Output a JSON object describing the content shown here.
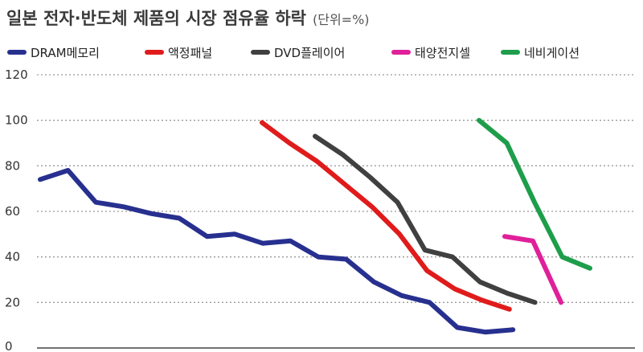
{
  "chart_data": {
    "type": "line",
    "title": "일본 전자·반도체 제품의 시장 점유율 하락",
    "unit": "(단위=%)",
    "ylim": [
      0,
      120
    ],
    "yticks": [
      0,
      20,
      40,
      60,
      80,
      100,
      120
    ],
    "grid": true,
    "legend_position": "top",
    "series": [
      {
        "name": "DRAM메모리",
        "color": "#27308f",
        "values": [
          74,
          78,
          64,
          62,
          59,
          57,
          49,
          50,
          46,
          47,
          40,
          39,
          29,
          23,
          20,
          9,
          7,
          8
        ]
      },
      {
        "name": "액정패널",
        "color": "#e01b1b",
        "values": [
          99,
          90,
          82,
          72,
          62,
          50,
          34,
          26,
          21,
          17
        ]
      },
      {
        "name": "DVD플레이어",
        "color": "#404040",
        "values": [
          93,
          85,
          75,
          64,
          43,
          40,
          29,
          24,
          20
        ]
      },
      {
        "name": "태양전지셀",
        "color": "#e0209a",
        "values": [
          49,
          47,
          20
        ]
      },
      {
        "name": "네비게이션",
        "color": "#1e9e4a",
        "values": [
          100,
          90,
          64,
          40,
          35
        ]
      }
    ]
  }
}
